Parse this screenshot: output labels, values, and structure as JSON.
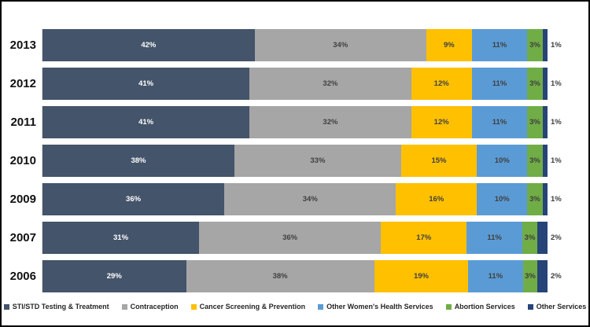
{
  "chart_data": {
    "type": "bar",
    "orientation": "horizontal-stacked",
    "title": "",
    "xlabel": "",
    "ylabel": "",
    "value_format": "percent",
    "xlim": [
      0,
      100
    ],
    "grid": false,
    "legend_position": "bottom",
    "categories": [
      "2013",
      "2012",
      "2011",
      "2010",
      "2009",
      "2007",
      "2006"
    ],
    "series": [
      {
        "name": "STI/STD Testing & Treatment",
        "color": "#44546A",
        "label_color": "#ffffff",
        "values": [
          42,
          41,
          41,
          38,
          36,
          31,
          29
        ]
      },
      {
        "name": "Contraception",
        "color": "#A6A6A6",
        "label_color": "#404040",
        "values": [
          34,
          32,
          32,
          33,
          34,
          36,
          38
        ]
      },
      {
        "name": "Cancer Screening & Prevention",
        "color": "#FFC000",
        "label_color": "#404040",
        "values": [
          9,
          12,
          12,
          15,
          16,
          17,
          19
        ]
      },
      {
        "name": "Other Women's Health Services",
        "color": "#5B9BD5",
        "label_color": "#404040",
        "values": [
          11,
          11,
          11,
          10,
          10,
          11,
          11
        ]
      },
      {
        "name": "Abortion Services",
        "color": "#70AD47",
        "label_color": "#404040",
        "values": [
          3,
          3,
          3,
          3,
          3,
          3,
          3
        ]
      },
      {
        "name": "Other Services",
        "color": "#264478",
        "label_color": "#404040",
        "values": [
          1,
          1,
          1,
          1,
          1,
          2,
          2
        ],
        "label_outside": true
      }
    ]
  }
}
